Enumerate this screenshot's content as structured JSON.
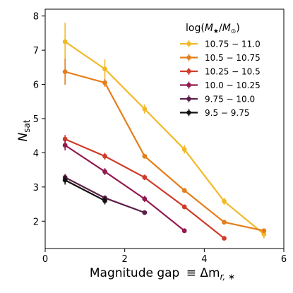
{
  "chart_data": {
    "type": "line",
    "xlabel_main": "Magnitude gap",
    "xlabel_math": "≡ Δm",
    "xlabel_sub": "r, ∗",
    "ylabel_main": "N",
    "ylabel_sub": "sat",
    "xlim": [
      0,
      6
    ],
    "ylim": [
      1.2,
      8.2
    ],
    "xticks": [
      0,
      2,
      4,
      6
    ],
    "yticks": [
      2,
      3,
      4,
      5,
      6,
      7,
      8
    ],
    "grid": false,
    "legend": {
      "placement": "top-right",
      "title_prefix": "log(",
      "title_m": "M",
      "title_star": "★",
      "title_slash": "/",
      "title_sun": "⊙",
      "title_suffix": ")"
    },
    "series": [
      {
        "name": "10.75 − 11.0",
        "color": "#f2b829",
        "x": [
          0.5,
          1.5,
          2.5,
          3.5,
          4.5,
          5.5
        ],
        "y": [
          7.25,
          6.45,
          5.28,
          4.1,
          2.58,
          1.62
        ],
        "err": [
          0.55,
          0.28,
          0.13,
          0.12,
          0.1,
          0.12
        ]
      },
      {
        "name": "10.5 − 10.75",
        "color": "#e57e1a",
        "x": [
          0.5,
          1.5,
          2.5,
          3.5,
          4.5,
          5.5
        ],
        "y": [
          6.37,
          6.05,
          3.9,
          2.9,
          1.97,
          1.72
        ],
        "err": [
          0.38,
          0.12,
          0.07,
          0.05,
          0.04,
          0.05
        ]
      },
      {
        "name": "10.25 − 10.5",
        "color": "#cf3d2a",
        "x": [
          0.5,
          1.5,
          2.5,
          3.5,
          4.5
        ],
        "y": [
          4.4,
          3.9,
          3.28,
          2.42,
          1.5
        ],
        "err": [
          0.12,
          0.1,
          0.08,
          0.05,
          0.03
        ]
      },
      {
        "name": "10.0 − 10.25",
        "color": "#931a4e",
        "x": [
          0.5,
          1.5,
          2.5,
          3.5
        ],
        "y": [
          4.22,
          3.45,
          2.65,
          1.72
        ],
        "err": [
          0.15,
          0.1,
          0.09,
          0.04
        ]
      },
      {
        "name": "9.75 − 10.0",
        "color": "#5b1f48",
        "x": [
          0.5,
          1.5,
          2.5
        ],
        "y": [
          3.28,
          2.68,
          2.25
        ],
        "err": [
          0.1,
          0.07,
          0.06
        ]
      },
      {
        "name": "9.5 − 9.75",
        "color": "#111111",
        "x": [
          0.5,
          1.5
        ],
        "y": [
          3.2,
          2.6
        ],
        "err": [
          0.13,
          0.11
        ]
      }
    ]
  }
}
